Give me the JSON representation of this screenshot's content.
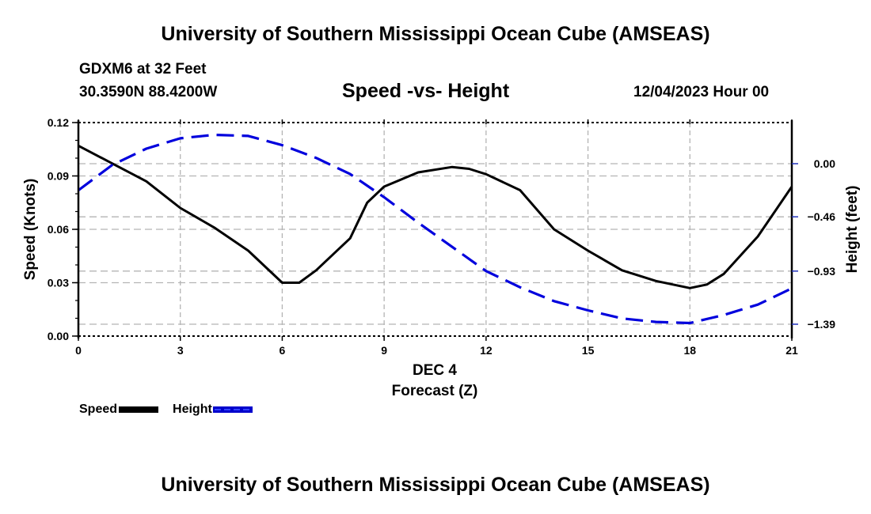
{
  "header": {
    "title": "University of Southern Mississippi Ocean Cube (AMSEAS)",
    "station": "GDXM6 at 32 Feet",
    "coordinates": "30.3590N  88.4200W",
    "subtitle": "Speed -vs- Height",
    "datetime": "12/04/2023 Hour 00"
  },
  "footer": {
    "title": "University of Southern Mississippi Ocean Cube (AMSEAS)"
  },
  "legend": {
    "speed_label": "Speed",
    "height_label": "Height"
  },
  "colors": {
    "speed": "#000000",
    "height": "#0000dd",
    "grid": "#b4b4b4"
  },
  "chart_data": {
    "type": "line",
    "title": "Speed -vs- Height",
    "xlabel": "Forecast (Z)",
    "xlabel_date": "DEC 4",
    "ylabel": "Speed (Knots)",
    "y2label": "Height (feet)",
    "xlim": [
      0,
      21
    ],
    "ylim": [
      0,
      0.12
    ],
    "y2lim": [
      -1.5,
      0.36
    ],
    "x_ticks": [
      0,
      3,
      6,
      9,
      12,
      15,
      18,
      21
    ],
    "x_tick_labels": [
      "0",
      "3",
      "6",
      "9",
      "12",
      "15",
      "18",
      "21"
    ],
    "y_ticks": [
      0.0,
      0.03,
      0.06,
      0.09,
      0.12
    ],
    "y_tick_labels": [
      "0.00",
      "0.03",
      "0.06",
      "0.09",
      "0.12"
    ],
    "y2_ticks": [
      0.0,
      -0.46,
      -0.93,
      -1.39
    ],
    "y2_tick_labels": [
      "0.00",
      "−0.46",
      "−0.93",
      "−1.39"
    ],
    "grid": true,
    "legend_position": "bottom-left",
    "series": [
      {
        "name": "Speed",
        "axis": "left",
        "style": "solid",
        "x": [
          0,
          1,
          2,
          3,
          4,
          5,
          6,
          6.5,
          7,
          8,
          8.5,
          9,
          10,
          11,
          11.5,
          12,
          13,
          14,
          15,
          16,
          17,
          18,
          18.5,
          19,
          20,
          21
        ],
        "values": [
          0.107,
          0.097,
          0.087,
          0.072,
          0.061,
          0.048,
          0.03,
          0.03,
          0.037,
          0.055,
          0.075,
          0.084,
          0.092,
          0.095,
          0.094,
          0.091,
          0.082,
          0.06,
          0.048,
          0.037,
          0.031,
          0.027,
          0.029,
          0.035,
          0.056,
          0.084
        ]
      },
      {
        "name": "Height",
        "axis": "right",
        "style": "dashed",
        "x": [
          0,
          1,
          2,
          3,
          4,
          5,
          6,
          7,
          8,
          9,
          10,
          11,
          12,
          13,
          14,
          15,
          16,
          17,
          18,
          19,
          20,
          21
        ],
        "values": [
          -0.23,
          -0.01,
          0.13,
          0.22,
          0.25,
          0.24,
          0.16,
          0.05,
          -0.09,
          -0.29,
          -0.51,
          -0.72,
          -0.93,
          -1.07,
          -1.19,
          -1.27,
          -1.34,
          -1.37,
          -1.38,
          -1.31,
          -1.22,
          -1.08
        ]
      }
    ]
  }
}
